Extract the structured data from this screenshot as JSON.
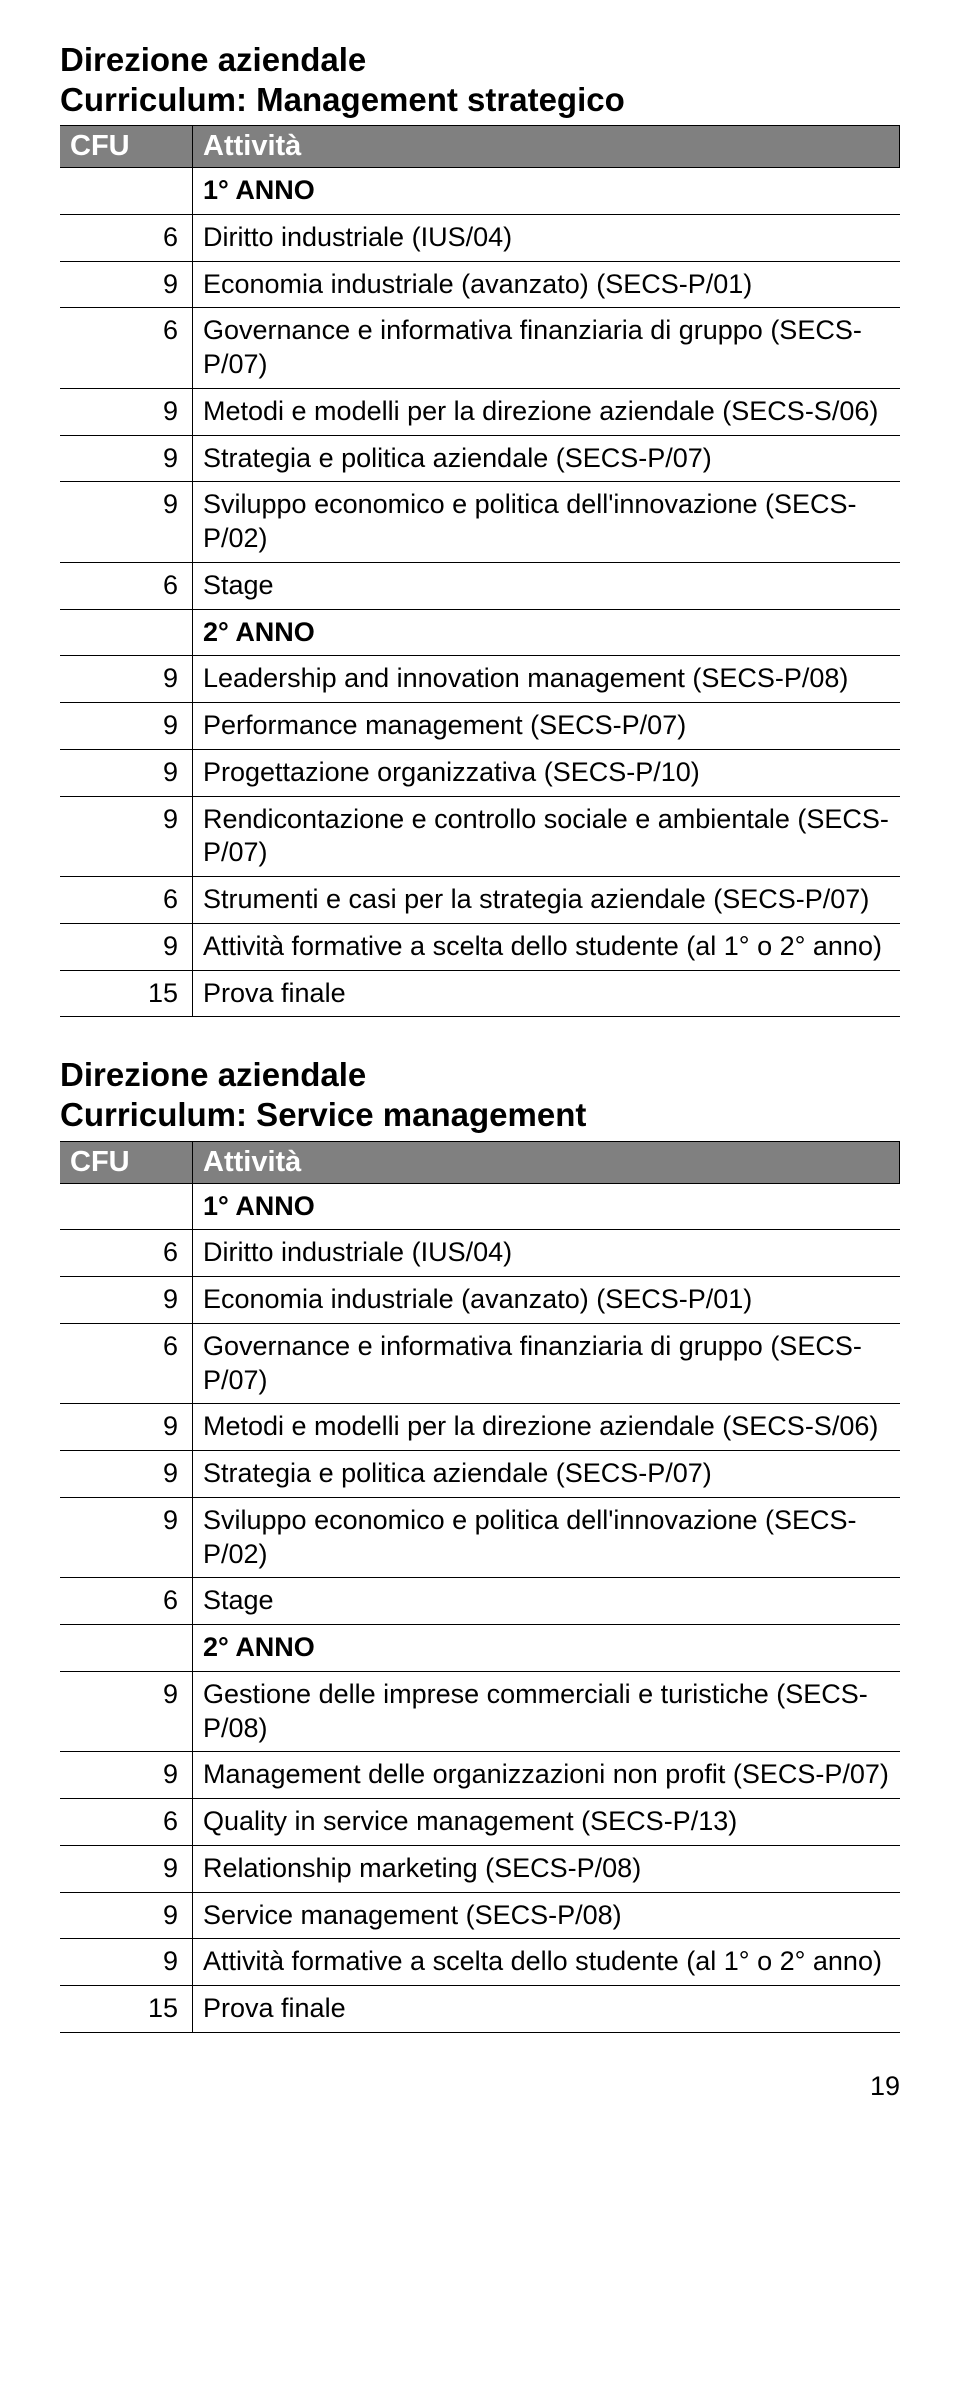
{
  "page_number": "19",
  "columns": {
    "cfu": "CFU",
    "attivita": "Attività"
  },
  "tables": [
    {
      "title_lines": [
        "Direzione aziendale",
        "Curriculum: Management strategico"
      ],
      "rows": [
        {
          "cfu": "",
          "activity": "1° ANNO",
          "section": true
        },
        {
          "cfu": "6",
          "activity": "Diritto industriale (IUS/04)"
        },
        {
          "cfu": "9",
          "activity": "Economia industriale (avanzato) (SECS-P/01)"
        },
        {
          "cfu": "6",
          "activity": "Governance e informativa finanziaria di gruppo (SECS-P/07)"
        },
        {
          "cfu": "9",
          "activity": "Metodi e modelli per la direzione aziendale (SECS-S/06)"
        },
        {
          "cfu": "9",
          "activity": "Strategia e politica aziendale (SECS-P/07)"
        },
        {
          "cfu": "9",
          "activity": "Sviluppo economico e politica dell'innovazione (SECS-P/02)"
        },
        {
          "cfu": "6",
          "activity": "Stage"
        },
        {
          "cfu": "",
          "activity": "2° ANNO",
          "section": true
        },
        {
          "cfu": "9",
          "activity": "Leadership and innovation management (SECS-P/08)"
        },
        {
          "cfu": "9",
          "activity": "Performance management (SECS-P/07)"
        },
        {
          "cfu": "9",
          "activity": "Progettazione organizzativa (SECS-P/10)"
        },
        {
          "cfu": "9",
          "activity": "Rendicontazione e controllo sociale e ambientale (SECS-P/07)"
        },
        {
          "cfu": "6",
          "activity": "Strumenti e casi per la strategia aziendale (SECS-P/07)"
        },
        {
          "cfu": "9",
          "activity": "Attività formative a scelta dello studente (al 1° o 2° anno)"
        },
        {
          "cfu": "15",
          "activity": "Prova finale"
        }
      ]
    },
    {
      "title_lines": [
        "Direzione aziendale",
        "Curriculum: Service management"
      ],
      "rows": [
        {
          "cfu": "",
          "activity": "1° ANNO",
          "section": true
        },
        {
          "cfu": "6",
          "activity": "Diritto industriale (IUS/04)"
        },
        {
          "cfu": "9",
          "activity": "Economia industriale (avanzato) (SECS-P/01)"
        },
        {
          "cfu": "6",
          "activity": "Governance e informativa finanziaria di gruppo (SECS-P/07)"
        },
        {
          "cfu": "9",
          "activity": "Metodi e modelli per la direzione aziendale (SECS-S/06)"
        },
        {
          "cfu": "9",
          "activity": "Strategia e politica aziendale (SECS-P/07)"
        },
        {
          "cfu": "9",
          "activity": "Sviluppo economico e politica dell'innovazione (SECS-P/02)"
        },
        {
          "cfu": "6",
          "activity": "Stage"
        },
        {
          "cfu": "",
          "activity": "2° ANNO",
          "section": true
        },
        {
          "cfu": "9",
          "activity": "Gestione delle imprese commerciali e turistiche (SECS-P/08)"
        },
        {
          "cfu": "9",
          "activity": "Management delle organizzazioni non profit (SECS-P/07)"
        },
        {
          "cfu": "6",
          "activity": "Quality in service management (SECS-P/13)"
        },
        {
          "cfu": "9",
          "activity": "Relationship marketing (SECS-P/08)"
        },
        {
          "cfu": "9",
          "activity": "Service management (SECS-P/08)"
        },
        {
          "cfu": "9",
          "activity": "Attività formative a scelta dello studente (al 1° o 2° anno)"
        },
        {
          "cfu": "15",
          "activity": "Prova finale"
        }
      ]
    }
  ]
}
